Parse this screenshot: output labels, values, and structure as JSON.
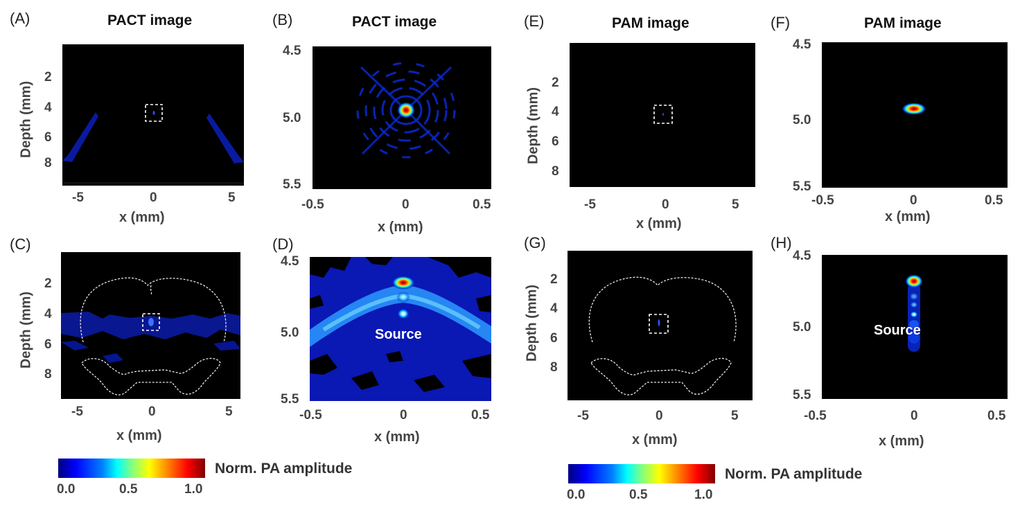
{
  "panels": {
    "A": {
      "label": "(A)",
      "title": "PACT image",
      "xlabel": "x (mm)",
      "ylabel": "Depth (mm)",
      "xticks": [
        "-5",
        "0",
        "5"
      ],
      "yticks": [
        "2",
        "4",
        "6",
        "8"
      ]
    },
    "B": {
      "label": "(B)",
      "title": "PACT image",
      "xlabel": "x (mm)",
      "xticks": [
        "-0.5",
        "0",
        "0.5"
      ],
      "yticks": [
        "4.5",
        "5.0",
        "5.5"
      ]
    },
    "C": {
      "label": "(C)",
      "xlabel": "x (mm)",
      "ylabel": "Depth (mm)",
      "xticks": [
        "-5",
        "0",
        "5"
      ],
      "yticks": [
        "2",
        "4",
        "6",
        "8"
      ]
    },
    "D": {
      "label": "(D)",
      "xlabel": "x (mm)",
      "annotation": "Source",
      "xticks": [
        "-0.5",
        "0",
        "0.5"
      ],
      "yticks": [
        "4.5",
        "5.0",
        "5.5"
      ]
    },
    "E": {
      "label": "(E)",
      "title": "PAM image",
      "xlabel": "x (mm)",
      "ylabel": "Depth (mm)",
      "xticks": [
        "-5",
        "0",
        "5"
      ],
      "yticks": [
        "2",
        "4",
        "6",
        "8"
      ]
    },
    "F": {
      "label": "(F)",
      "title": "PAM image",
      "xlabel": "x (mm)",
      "xticks": [
        "-0.5",
        "0",
        "0.5"
      ],
      "yticks": [
        "4.5",
        "5.0",
        "5.5"
      ]
    },
    "G": {
      "label": "(G)",
      "xlabel": "x (mm)",
      "ylabel": "Depth (mm)",
      "xticks": [
        "-5",
        "0",
        "5"
      ],
      "yticks": [
        "2",
        "4",
        "6",
        "8"
      ]
    },
    "H": {
      "label": "(H)",
      "xlabel": "x (mm)",
      "annotation": "Source",
      "xticks": [
        "-0.5",
        "0",
        "0.5"
      ],
      "yticks": [
        "4.5",
        "5.0",
        "5.5"
      ]
    }
  },
  "colorbars": [
    {
      "title": "Norm. PA amplitude",
      "ticks": [
        "0.0",
        "0.5",
        "1.0"
      ]
    },
    {
      "title": "Norm. PA amplitude",
      "ticks": [
        "0.0",
        "0.5",
        "1.0"
      ]
    }
  ],
  "colormap": "jet",
  "colors": {
    "background": "#000000",
    "outline": "#ffffff"
  }
}
